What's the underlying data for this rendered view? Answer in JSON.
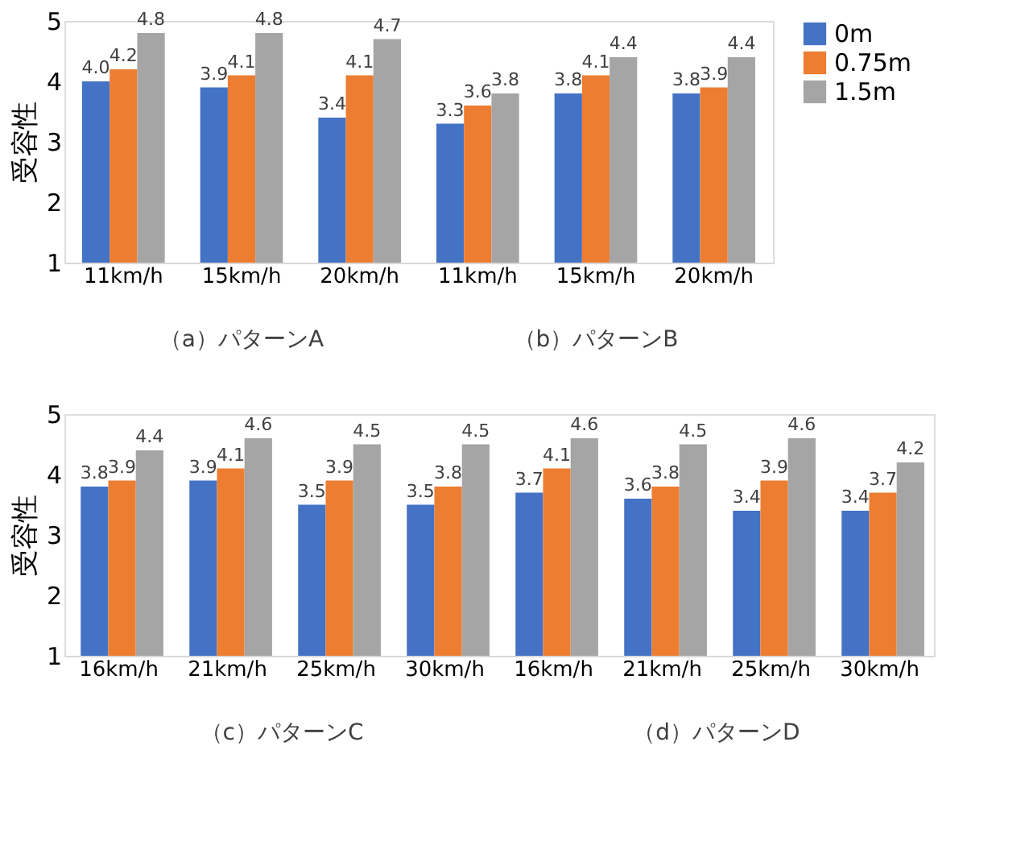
{
  "chart_data": [
    {
      "type": "bar",
      "ylabel": "受容性",
      "categories": [
        "11km/h",
        "15km/h",
        "20km/h",
        "11km/h",
        "15km/h",
        "20km/h"
      ],
      "series": [
        {
          "name": "0m",
          "color": "#4472c4",
          "values": [
            4.0,
            3.9,
            3.4,
            3.3,
            3.8,
            3.8
          ],
          "value_labels": [
            "4.0",
            "3.9",
            "3.4",
            "3.3",
            "3.8",
            "3.8"
          ]
        },
        {
          "name": "0.75m",
          "color": "#ed7d31",
          "values": [
            4.2,
            4.1,
            4.1,
            3.6,
            4.1,
            3.9
          ],
          "value_labels": [
            "4.2",
            "4.1",
            "4.1",
            "3.6",
            "4.1",
            "3.9"
          ]
        },
        {
          "name": "1.5m",
          "color": "#a5a5a5",
          "values": [
            4.8,
            4.8,
            4.7,
            3.8,
            4.4,
            4.4
          ],
          "value_labels": [
            "4.8",
            "4.8",
            "4.7",
            "3.8",
            "4.4",
            "4.4"
          ]
        }
      ],
      "ylim": [
        1,
        5
      ],
      "yticks": [
        1,
        2,
        3,
        4,
        5
      ],
      "data_labels": true,
      "grid": false,
      "legend": "right",
      "annotations": [
        "（a）パターンA",
        "（b）パターンB"
      ]
    },
    {
      "type": "bar",
      "ylabel": "受容性",
      "categories": [
        "16km/h",
        "21km/h",
        "25km/h",
        "30km/h",
        "16km/h",
        "21km/h",
        "25km/h",
        "30km/h"
      ],
      "series": [
        {
          "color": "#4472c4",
          "values": [
            3.8,
            3.9,
            3.5,
            3.5,
            3.7,
            3.6,
            3.4,
            3.4
          ],
          "value_labels": [
            "3.8",
            "3.9",
            "3.5",
            "3.5",
            "3.7",
            "3.6",
            "3.4",
            "3.4"
          ]
        },
        {
          "color": "#ed7d31",
          "values": [
            3.9,
            4.1,
            3.9,
            3.8,
            4.1,
            3.8,
            3.9,
            3.7
          ],
          "value_labels": [
            "3.9",
            "4.1",
            "3.9",
            "3.8",
            "4.1",
            "3.8",
            "3.9",
            "3.7"
          ]
        },
        {
          "color": "#a5a5a5",
          "values": [
            4.4,
            4.6,
            4.5,
            4.5,
            4.6,
            4.5,
            4.6,
            4.2
          ],
          "value_labels": [
            "4.4",
            "4.6",
            "4.5",
            "4.5",
            "4.6",
            "4.5",
            "4.6",
            "4.2"
          ]
        }
      ],
      "ylim": [
        1,
        5
      ],
      "yticks": [
        1,
        2,
        3,
        4,
        5
      ],
      "data_labels": true,
      "grid": false,
      "legend": false,
      "annotations": [
        "（c）パターンC",
        "（d）パターンD"
      ]
    }
  ]
}
